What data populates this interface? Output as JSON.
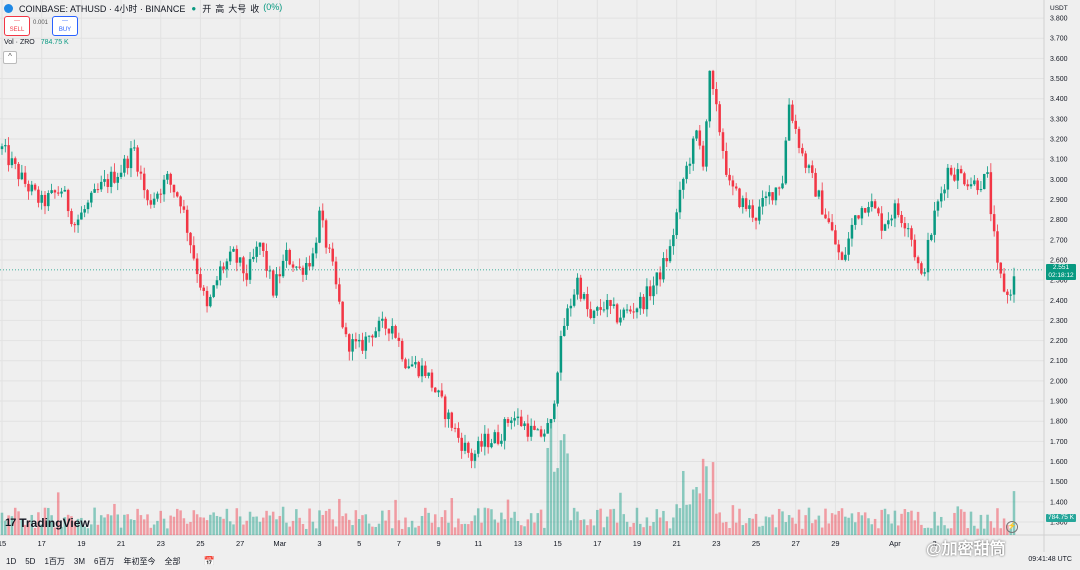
{
  "legend": {
    "symbol": "COINBASE: ATHUSD · 4小时 · BINANCE",
    "ohlc": [
      {
        "label": "开",
        "value": ""
      },
      {
        "label": "高",
        "value": ""
      },
      {
        "label": "大号",
        "value": ""
      },
      {
        "label": "收",
        "value": ""
      }
    ],
    "change": "(0%)"
  },
  "trade": {
    "sell_label": "SELL",
    "buy_label": "BUY",
    "spread": "0.001"
  },
  "volume_legend": {
    "label": "Vol · ZRO",
    "value": "784.75 K"
  },
  "branding": {
    "logo": "TradingView"
  },
  "price_axis": {
    "unit": "USDT",
    "last_price": "2.551",
    "countdown": "02:18:12",
    "volume_tag": "784.75 K"
  },
  "bottom_bar": {
    "ranges": [
      "1D",
      "5D",
      "1百万",
      "3M",
      "6百万",
      "年初至今",
      "全部"
    ],
    "time": "09:41:48 UTC"
  },
  "watermark": "@加密甜筒",
  "chart_data": {
    "type": "candlestick",
    "title": "",
    "ylim": [
      1.3,
      3.85
    ],
    "y_ticks": [
      1.3,
      1.4,
      1.5,
      1.6,
      1.7,
      1.8,
      1.9,
      2.0,
      2.1,
      2.2,
      2.3,
      2.4,
      2.5,
      2.6,
      2.7,
      2.8,
      2.9,
      3.0,
      3.1,
      3.2,
      3.3,
      3.4,
      3.5,
      3.6,
      3.7,
      3.8
    ],
    "x_ticks": [
      {
        "label": "15",
        "t": 0
      },
      {
        "label": "17",
        "t": 12
      },
      {
        "label": "19",
        "t": 24
      },
      {
        "label": "21",
        "t": 36
      },
      {
        "label": "23",
        "t": 48
      },
      {
        "label": "25",
        "t": 60
      },
      {
        "label": "27",
        "t": 72
      },
      {
        "label": "Mar",
        "t": 84
      },
      {
        "label": "3",
        "t": 96
      },
      {
        "label": "5",
        "t": 108
      },
      {
        "label": "7",
        "t": 120
      },
      {
        "label": "9",
        "t": 132
      },
      {
        "label": "11",
        "t": 144
      },
      {
        "label": "13",
        "t": 156
      },
      {
        "label": "15",
        "t": 168
      },
      {
        "label": "17",
        "t": 180
      },
      {
        "label": "19",
        "t": 192
      },
      {
        "label": "21",
        "t": 204
      },
      {
        "label": "23",
        "t": 216
      },
      {
        "label": "25",
        "t": 228
      },
      {
        "label": "27",
        "t": 240
      },
      {
        "label": "29",
        "t": 252
      },
      {
        "label": "Apr",
        "t": 270
      },
      {
        "label": "3",
        "t": 282
      }
    ],
    "anchors": [
      [
        0,
        3.15
      ],
      [
        6,
        3.0
      ],
      [
        12,
        2.88
      ],
      [
        18,
        2.95
      ],
      [
        22,
        2.78
      ],
      [
        30,
        2.96
      ],
      [
        36,
        3.05
      ],
      [
        40,
        3.15
      ],
      [
        44,
        2.88
      ],
      [
        50,
        3.0
      ],
      [
        54,
        2.9
      ],
      [
        58,
        2.62
      ],
      [
        62,
        2.35
      ],
      [
        66,
        2.55
      ],
      [
        70,
        2.62
      ],
      [
        74,
        2.52
      ],
      [
        78,
        2.68
      ],
      [
        82,
        2.45
      ],
      [
        86,
        2.62
      ],
      [
        90,
        2.55
      ],
      [
        94,
        2.62
      ],
      [
        96,
        2.82
      ],
      [
        100,
        2.55
      ],
      [
        104,
        2.2
      ],
      [
        108,
        2.16
      ],
      [
        112,
        2.25
      ],
      [
        118,
        2.28
      ],
      [
        122,
        2.1
      ],
      [
        128,
        2.05
      ],
      [
        134,
        1.85
      ],
      [
        138,
        1.72
      ],
      [
        142,
        1.62
      ],
      [
        146,
        1.7
      ],
      [
        150,
        1.72
      ],
      [
        154,
        1.83
      ],
      [
        158,
        1.78
      ],
      [
        162,
        1.72
      ],
      [
        166,
        1.78
      ],
      [
        168,
        2.08
      ],
      [
        170,
        2.28
      ],
      [
        174,
        2.5
      ],
      [
        178,
        2.3
      ],
      [
        182,
        2.38
      ],
      [
        186,
        2.32
      ],
      [
        190,
        2.35
      ],
      [
        194,
        2.4
      ],
      [
        198,
        2.5
      ],
      [
        202,
        2.65
      ],
      [
        206,
        3.0
      ],
      [
        210,
        3.22
      ],
      [
        212,
        3.1
      ],
      [
        214,
        3.5
      ],
      [
        217,
        3.25
      ],
      [
        220,
        2.96
      ],
      [
        224,
        2.88
      ],
      [
        228,
        2.82
      ],
      [
        232,
        2.92
      ],
      [
        236,
        3.0
      ],
      [
        238,
        3.38
      ],
      [
        242,
        3.12
      ],
      [
        246,
        2.95
      ],
      [
        250,
        2.78
      ],
      [
        254,
        2.58
      ],
      [
        258,
        2.82
      ],
      [
        262,
        2.9
      ],
      [
        266,
        2.78
      ],
      [
        270,
        2.85
      ],
      [
        274,
        2.78
      ],
      [
        278,
        2.5
      ],
      [
        282,
        2.82
      ],
      [
        286,
        3.05
      ],
      [
        290,
        3.02
      ],
      [
        294,
        2.98
      ],
      [
        298,
        3.0
      ],
      [
        301,
        2.55
      ],
      [
        304,
        2.42
      ],
      [
        306,
        2.5
      ]
    ],
    "last_price": 2.551
  }
}
